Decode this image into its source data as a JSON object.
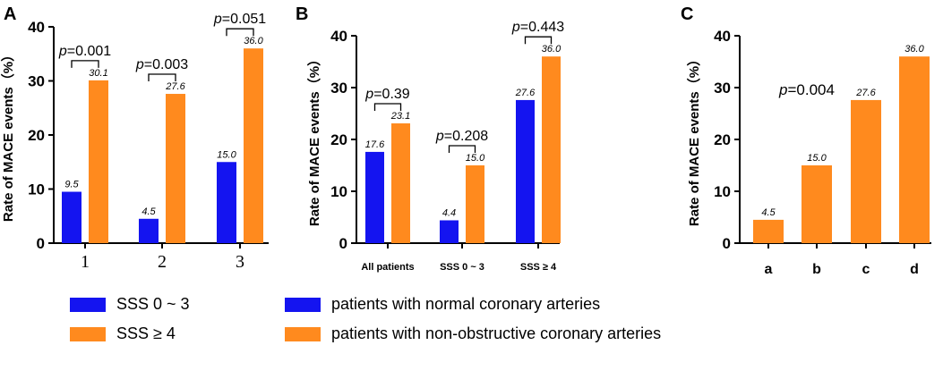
{
  "colors": {
    "blue": "#1414f0",
    "orange": "#ff8a1e",
    "axis": "#000000"
  },
  "chart_data": [
    {
      "panel": "A",
      "type": "bar",
      "ylabel": "Rate of MACE events（%）",
      "ylim": [
        0,
        40
      ],
      "yticks": [
        "0",
        "10",
        "20",
        "30",
        "40"
      ],
      "categories": [
        "1",
        "2",
        "3"
      ],
      "series": [
        {
          "name": "SSS 0 ~ 3",
          "color": "blue",
          "values": [
            9.5,
            4.5,
            15.0
          ],
          "labels": [
            "9.5",
            "4.5",
            "15.0"
          ]
        },
        {
          "name": "SSS ≥ 4",
          "color": "orange",
          "values": [
            30.1,
            27.6,
            36.0
          ],
          "labels": [
            "30.1",
            "27.6",
            "36.0"
          ]
        }
      ],
      "pvalues": [
        {
          "p": "p",
          "text": "=0.001"
        },
        {
          "p": "p",
          "text": "=0.003"
        },
        {
          "p": "p",
          "text": "=0.051"
        }
      ]
    },
    {
      "panel": "B",
      "type": "bar",
      "ylabel": "Rate of MACE events（%）",
      "ylim": [
        0,
        40
      ],
      "yticks": [
        "0",
        "10",
        "20",
        "30",
        "40"
      ],
      "categories": [
        "All patients",
        "SSS 0 ~ 3",
        "SSS ≥ 4"
      ],
      "series": [
        {
          "name": "patients with normal coronary arteries",
          "color": "blue",
          "values": [
            17.6,
            4.4,
            27.6
          ],
          "labels": [
            "17.6",
            "4.4",
            "27.6"
          ]
        },
        {
          "name": "patients with  non-obstructive coronary arteries",
          "color": "orange",
          "values": [
            23.1,
            15.0,
            36.0
          ],
          "labels": [
            "23.1",
            "15.0",
            "36.0"
          ]
        }
      ],
      "pvalues": [
        {
          "p": "p",
          "text": "=0.39"
        },
        {
          "p": "p",
          "text": "=0.208"
        },
        {
          "p": "p",
          "text": "=0.443"
        }
      ]
    },
    {
      "panel": "C",
      "type": "bar",
      "ylabel": "Rate of MACE events（%）",
      "ylim": [
        0,
        40
      ],
      "yticks": [
        "0",
        "10",
        "20",
        "30",
        "40"
      ],
      "categories": [
        "a",
        "b",
        "c",
        "d"
      ],
      "series": [
        {
          "name": "",
          "color": "orange",
          "values": [
            4.5,
            15.0,
            27.6,
            36.0
          ],
          "labels": [
            "4.5",
            "15.0",
            "27.6",
            "36.0"
          ]
        }
      ],
      "pvalue": {
        "p": "p",
        "text": "=0.004"
      }
    }
  ],
  "legend": [
    {
      "label": "SSS 0 ~ 3",
      "color": "blue"
    },
    {
      "label": "SSS ≥ 4",
      "color": "orange"
    },
    {
      "label": "patients with normal coronary arteries",
      "color": "blue"
    },
    {
      "label": "patients with  non-obstructive coronary arteries",
      "color": "orange"
    }
  ]
}
